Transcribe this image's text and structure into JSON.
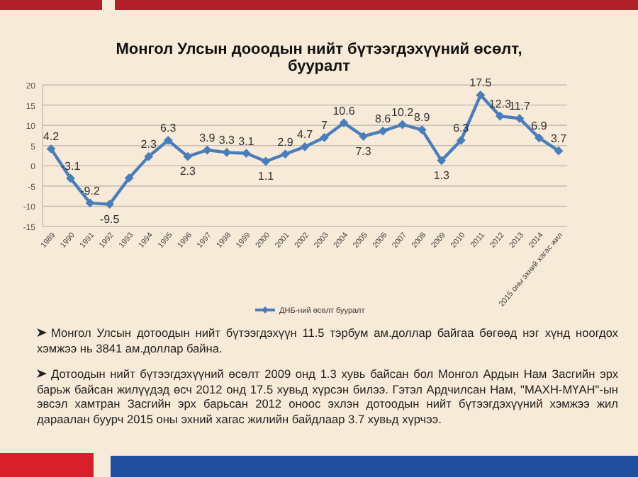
{
  "chart_data": {
    "type": "line",
    "title": "Монгол Улсын дооодын нийт бүтээгдэхүүний өсөлт, бууралт",
    "categories": [
      "1989",
      "1990",
      "1991",
      "1992",
      "1993",
      "1994",
      "1995",
      "1996",
      "1997",
      "1998",
      "1999",
      "2000",
      "2001",
      "2002",
      "2003",
      "2004",
      "2005",
      "2006",
      "2007",
      "2008",
      "2009",
      "2010",
      "2011",
      "2012",
      "2013",
      "2014",
      "2015 оны эхний хагас жил"
    ],
    "series": [
      {
        "name": "ДНБ-ний өсөлт бууралт",
        "color": "#4a7ebb",
        "values": [
          4.2,
          -3.1,
          -9.2,
          -9.5,
          -3,
          2.3,
          6.3,
          2.3,
          3.9,
          3.3,
          3.1,
          1.1,
          2.9,
          4.7,
          7,
          10.6,
          7.3,
          8.6,
          10.2,
          8.9,
          1.3,
          6.3,
          17.5,
          12.3,
          11.7,
          6.9,
          3.7
        ],
        "value_labels": [
          "4.2",
          "-3.1",
          "-9.2",
          "-9.5",
          null,
          "2.3",
          "6.3",
          "2.3",
          "3.9",
          "3.3",
          "3.1",
          "1.1",
          "2.9",
          "4.7",
          "7",
          "10.6",
          "7.3",
          "8.6",
          "10.2",
          "8.9",
          "1.3",
          "6.3",
          "17.5",
          "12.3",
          "11.7",
          "6.9",
          "3.7"
        ]
      }
    ],
    "ylim": [
      -15,
      20
    ],
    "yticks": [
      -15,
      -10,
      -5,
      0,
      5,
      10,
      15,
      20
    ],
    "grid": "y",
    "legend": "bottom",
    "marker": "diamond",
    "line_style": "solid",
    "annotations": [
      "Монгол Улсын дотоодын нийт бүтээгдэхүүн 11.5 тэрбум ам.доллар байгаа бөгөөд нэг хүнд ноогдох хэмжээ нь 3841 ам.доллар байна.",
      "Дотоодын нийт бүтээгдэхүүний өсөлт 2009 онд 1.3 хувь байсан бол Монгол Ардын Нам Засгийн эрх барьж байсан жилүүдэд өсч 2012 онд 17.5 хувьд хүрсэн билээ. Гэтэл Ардчилсан Нам, \"МАХН-МҮАН\"-ын эвсэл хамтран Засгийн эрх барьсан 2012 оноос эхлэн дотоодын нийт бүтээгдэхүүний хэмжээ жил дараалан буурч 2015 оны эхний хагас жилийн байдлаар 3.7 хувьд хүрчээ."
    ]
  }
}
